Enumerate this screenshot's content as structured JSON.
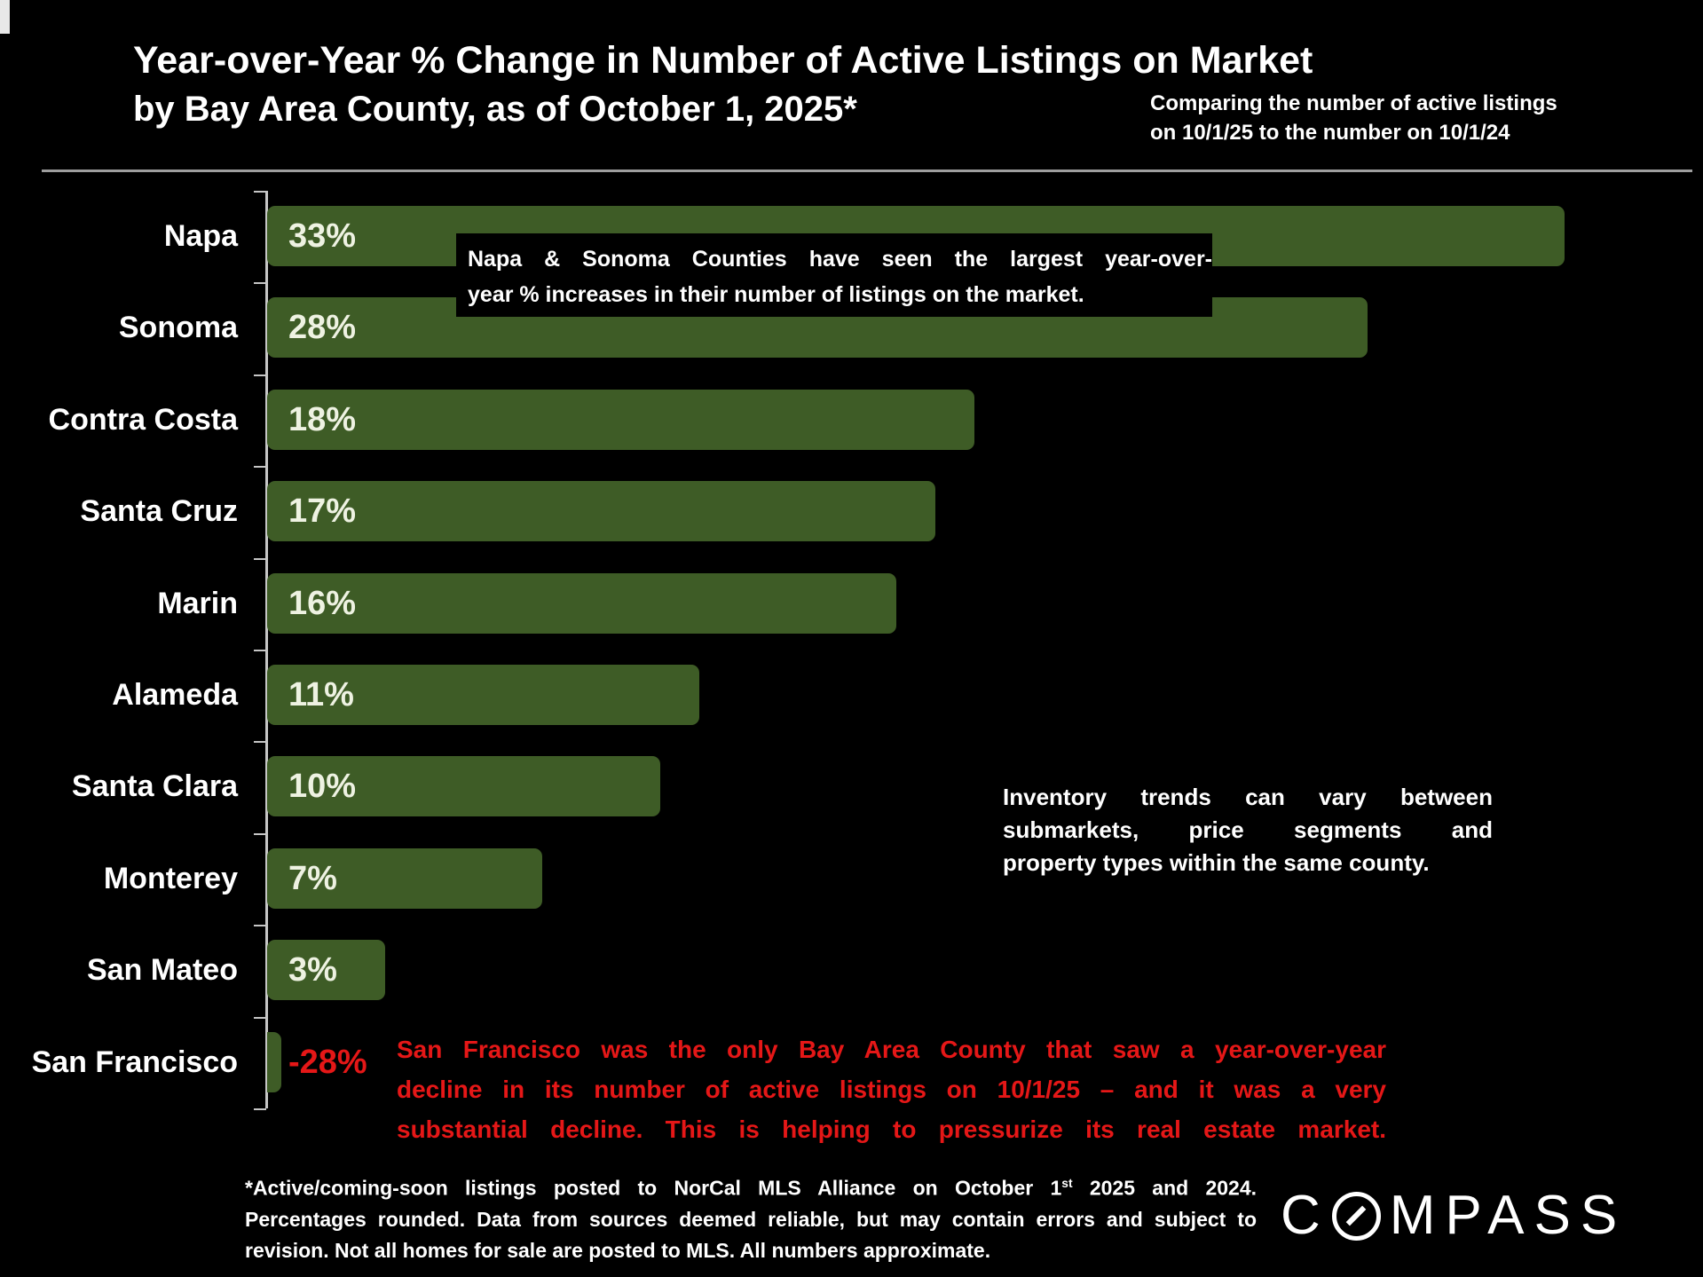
{
  "slide": {
    "title": "Year-over-Year % Change in Number of Active Listings on Market",
    "subtitle": "by Bay Area County, as of October 1, 2025*",
    "note_line1": "Comparing the number of active listings",
    "note_line2": "on 10/1/25 to the number on 10/1/24",
    "logo_c": "C",
    "logo_rest": "MPASS"
  },
  "chart_data": {
    "type": "bar",
    "orientation": "horizontal",
    "title": "Year-over-Year % Change in Number of Active Listings on Market by Bay Area County, as of October 1, 2025",
    "categories": [
      "Napa",
      "Sonoma",
      "Contra Costa",
      "Santa Cruz",
      "Marin",
      "Alameda",
      "Santa Clara",
      "Monterey",
      "San Mateo",
      "San Francisco"
    ],
    "values": [
      33,
      28,
      18,
      17,
      16,
      11,
      10,
      7,
      3,
      -28
    ],
    "value_labels": [
      "33%",
      "28%",
      "18%",
      "17%",
      "16%",
      "11%",
      "10%",
      "7%",
      "3%",
      "-28%"
    ],
    "xlim": [
      -28,
      33
    ],
    "grid": false,
    "legend": false,
    "bar_color": "#3e5c26",
    "value_label_color": "#eef2e2",
    "negative_value_color": "#e51717",
    "axis_color": "#c6c6c6"
  },
  "annotations": {
    "napa_sonoma": {
      "lines": [
        "Napa & Sonoma Counties have seen the largest year-over-",
        "year % increases in their number of listings on the market."
      ],
      "bg": "#000000",
      "color": "#ffffff"
    },
    "inventory": {
      "lines": [
        "Inventory trends can vary between",
        "submarkets, price segments and",
        "property types within the same county."
      ],
      "color": "#ffffff"
    },
    "san_francisco": {
      "lines": [
        "San Francisco was the only Bay Area County that saw a year-over-year",
        "decline in its number of active listings on 10/1/25 – and it was a very",
        "substantial decline. This is helping to pressurize its real estate market."
      ],
      "color": "#e51717"
    }
  },
  "footnote": {
    "line1_before_sup": "*Active/coming-soon listings posted to NorCal MLS Alliance on October 1",
    "line1_sup": "st",
    "line1_after_sup": " 2025 and 2024.",
    "line2": "Percentages rounded. Data from sources deemed reliable, but may contain errors and subject to",
    "line3": "revision. Not all homes for sale are posted to MLS. All numbers approximate."
  }
}
